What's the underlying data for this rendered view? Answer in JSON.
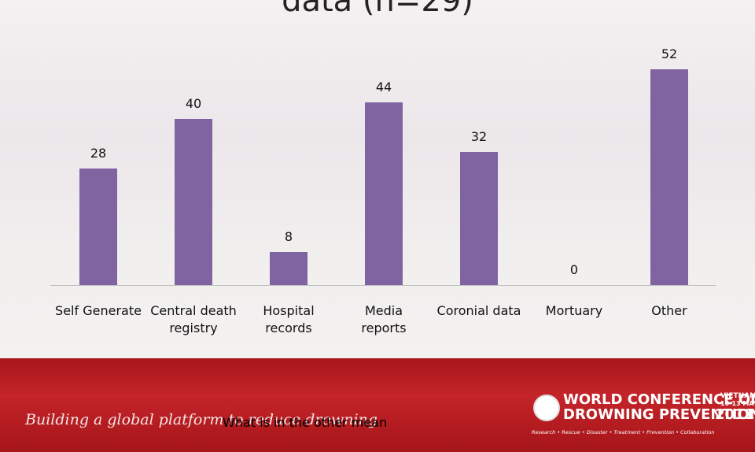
{
  "chart_data": {
    "type": "bar",
    "title": "data (n=29)",
    "categories": [
      "Self Generate",
      "Central death\nregistry",
      "Hospital\nrecords",
      "Media\nreports",
      "Coronial data",
      "Mortuary",
      "Other"
    ],
    "values": [
      28,
      40,
      8,
      44,
      32,
      0,
      52
    ],
    "color": "#8064a2"
  },
  "note": "What is in the other mean",
  "banner": {
    "slogan": "Building a global platform to reduce drowning",
    "conference_line1": "WORLD CONFERENCE ON",
    "conference_line2": "DROWNING PREVENTION",
    "country": "VIETNAM",
    "dates": "10-13 MAY",
    "year": "2011",
    "tagline": "Research • Rescue • Disaster • Treatment • Prevention • Collaboration"
  }
}
